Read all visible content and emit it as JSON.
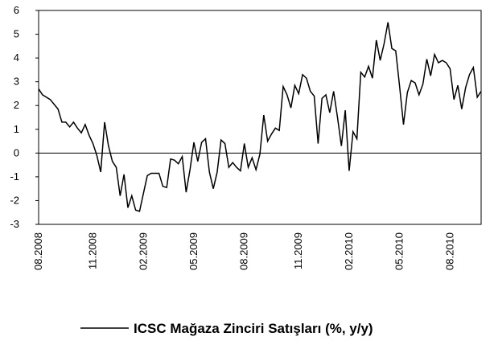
{
  "chart_data": {
    "type": "line",
    "categories": [
      "08.2008",
      null,
      null,
      null,
      null,
      null,
      null,
      null,
      null,
      null,
      null,
      null,
      null,
      null,
      "11.2008",
      null,
      null,
      null,
      null,
      null,
      null,
      null,
      null,
      null,
      null,
      null,
      null,
      "02.2009",
      null,
      null,
      null,
      null,
      null,
      null,
      null,
      null,
      null,
      null,
      null,
      null,
      "05.2009",
      null,
      null,
      null,
      null,
      null,
      null,
      null,
      null,
      null,
      null,
      null,
      null,
      "08.2009",
      null,
      null,
      null,
      null,
      null,
      null,
      null,
      null,
      null,
      null,
      null,
      null,
      null,
      "11.2009",
      null,
      null,
      null,
      null,
      null,
      null,
      null,
      null,
      null,
      null,
      null,
      null,
      "02.2010",
      null,
      null,
      null,
      null,
      null,
      null,
      null,
      null,
      null,
      null,
      null,
      null,
      "05.2010",
      null,
      null,
      null,
      null,
      null,
      null,
      null,
      null,
      null,
      null,
      null,
      null,
      "08.2010",
      null,
      null,
      null,
      null,
      null,
      null,
      null,
      null
    ],
    "series": [
      {
        "name": "ICSC Mağaza Zinciri Satışları (%, y/y)",
        "color": "#000000",
        "values": [
          2.7,
          2.45,
          2.35,
          2.25,
          2.05,
          1.85,
          1.3,
          1.3,
          1.1,
          1.3,
          1.05,
          0.85,
          1.2,
          0.75,
          0.4,
          -0.1,
          -0.8,
          1.3,
          0.3,
          -0.35,
          -0.6,
          -1.8,
          -0.9,
          -2.3,
          -1.8,
          -2.4,
          -2.45,
          -1.7,
          -0.95,
          -0.85,
          -0.85,
          -0.85,
          -1.4,
          -1.45,
          -0.25,
          -0.3,
          -0.45,
          -0.15,
          -1.65,
          -0.7,
          0.45,
          -0.35,
          0.45,
          0.6,
          -0.8,
          -1.5,
          -0.8,
          0.55,
          0.4,
          -0.6,
          -0.4,
          -0.6,
          -0.75,
          0.4,
          -0.6,
          -0.2,
          -0.7,
          -0.05,
          1.6,
          0.5,
          0.8,
          1.05,
          0.95,
          2.8,
          2.45,
          1.9,
          2.85,
          2.5,
          3.3,
          3.15,
          2.6,
          2.4,
          0.4,
          2.3,
          2.45,
          1.7,
          2.6,
          1.5,
          0.3,
          1.8,
          -0.75,
          0.9,
          0.6,
          3.4,
          3.2,
          3.65,
          3.15,
          4.75,
          3.9,
          4.6,
          5.5,
          4.4,
          4.3,
          2.8,
          1.2,
          2.55,
          3.05,
          2.95,
          2.45,
          2.9,
          3.95,
          3.25,
          4.15,
          3.8,
          3.9,
          3.8,
          3.55,
          2.25,
          2.85,
          1.85,
          2.75,
          3.3,
          3.6,
          2.35,
          2.6
        ]
      }
    ],
    "ylim": [
      -3,
      6
    ],
    "yticks": [
      -3,
      -2,
      -1,
      0,
      1,
      2,
      3,
      4,
      5,
      6
    ],
    "grid": false,
    "legend": "bottom"
  }
}
